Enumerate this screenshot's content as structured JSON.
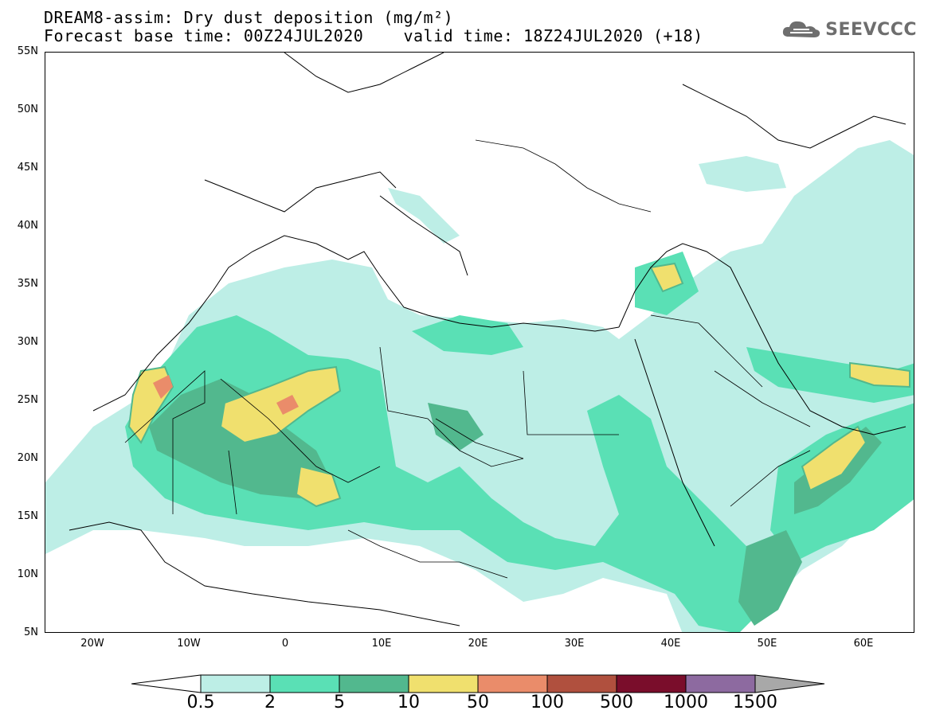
{
  "title": {
    "line1": "DREAM8-assim: Dry dust deposition (mg/m²)",
    "line2": "Forecast base time: 00Z24JUL2020    valid time: 18Z24JUL2020 (+18)"
  },
  "logo": {
    "text": "SEEVCCC",
    "icon": "cloud-icon"
  },
  "map": {
    "region": "North Africa, Europe, Middle East",
    "lon_range": [
      -25,
      65
    ],
    "lat_range": [
      5,
      55
    ],
    "lat_labels": [
      "55N",
      "50N",
      "45N",
      "40N",
      "35N",
      "30N",
      "25N",
      "20N",
      "15N",
      "10N",
      "5N"
    ],
    "lon_labels": [
      "20W",
      "10W",
      "0",
      "10E",
      "20E",
      "30E",
      "40E",
      "50E",
      "60E"
    ]
  },
  "legend": {
    "labels": [
      "0.5",
      "2",
      "5",
      "10",
      "50",
      "100",
      "500",
      "1000",
      "1500"
    ],
    "colors": [
      "#ffffff",
      "#bdeee6",
      "#5ae0b5",
      "#52b88e",
      "#f0e06e",
      "#ea8c6a",
      "#b0503e",
      "#7a0d2b",
      "#8d6aa0",
      "#a8a8a8"
    ]
  }
}
